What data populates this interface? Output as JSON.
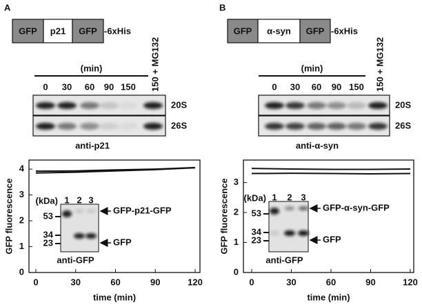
{
  "panels": [
    {
      "label": "A",
      "construct": [
        "GFP",
        "p21",
        "GFP",
        "-6xHis"
      ],
      "gel": {
        "unit": "(min)",
        "lanes": [
          "0",
          "30",
          "60",
          "90",
          "150",
          "150 + MG132"
        ],
        "rows": [
          "20S",
          "26S"
        ],
        "antibody": "anti-p21"
      },
      "plot": {
        "ylabel": "GFP fluorescence",
        "xlabel": "time (min)",
        "xlim": [
          0,
          120
        ],
        "ylim": [
          0,
          4.35
        ],
        "xticks": [
          0,
          30,
          60,
          90,
          120
        ],
        "yticks": [
          0,
          1,
          2,
          3,
          4
        ],
        "x": [
          0,
          30,
          60,
          90,
          120
        ],
        "series": [
          {
            "values": [
              3.85,
              3.88,
              3.93,
              3.98,
              4.05
            ]
          },
          {
            "values": [
              3.92,
              3.93,
              3.97,
              4.0,
              4.06
            ]
          }
        ]
      },
      "inset": {
        "unit": "(kDa)",
        "lanes": [
          "1",
          "2",
          "3"
        ],
        "markers": [
          "53",
          "34",
          "23"
        ],
        "bands": [
          "GFP-p21-GFP",
          "GFP"
        ],
        "antibody": "anti-GFP"
      }
    },
    {
      "label": "B",
      "construct": [
        "GFP",
        "α-syn",
        "GFP",
        "-6xHis"
      ],
      "gel": {
        "unit": "(min)",
        "lanes": [
          "0",
          "30",
          "60",
          "90",
          "150",
          "150 + MG132"
        ],
        "rows": [
          "20S",
          "26S"
        ],
        "antibody": "anti-α-syn"
      },
      "plot": {
        "ylabel": "GFP fluorescence",
        "xlabel": "time (min)",
        "xlim": [
          0,
          120
        ],
        "ylim": [
          0,
          3.75
        ],
        "xticks": [
          0,
          30,
          60,
          90,
          120
        ],
        "yticks": [
          0,
          1,
          2,
          3
        ],
        "x": [
          0,
          30,
          60,
          90,
          120
        ],
        "series": [
          {
            "values": [
              3.47,
              3.45,
              3.44,
              3.44,
              3.45
            ]
          },
          {
            "values": [
              3.3,
              3.31,
              3.3,
              3.29,
              3.3
            ]
          }
        ]
      },
      "inset": {
        "unit": "(kDa)",
        "lanes": [
          "1",
          "2",
          "3"
        ],
        "markers": [
          "53",
          "34",
          "23"
        ],
        "bands": [
          "GFP-α-syn-GFP",
          "GFP"
        ],
        "antibody": "anti-GFP"
      }
    }
  ]
}
